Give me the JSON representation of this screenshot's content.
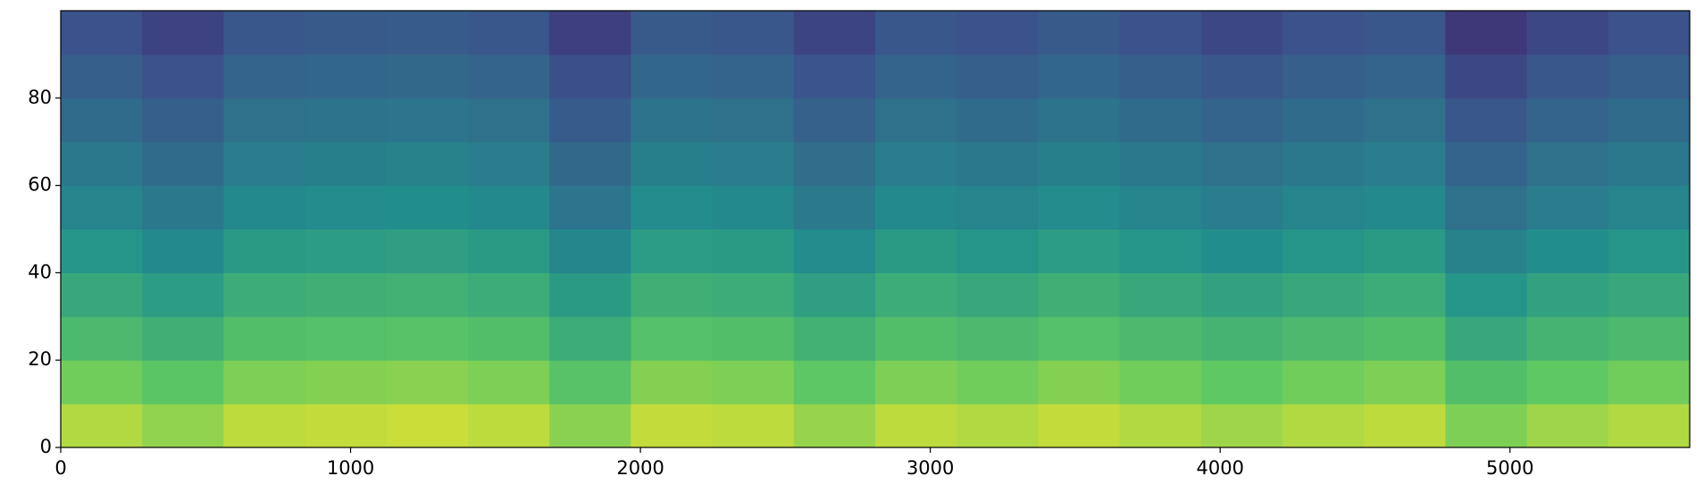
{
  "chart_data": {
    "type": "heatmap",
    "colormap": "viridis",
    "xlim": [
      0,
      5620
    ],
    "ylim": [
      0,
      100
    ],
    "xticks": [
      0,
      1000,
      2000,
      3000,
      4000,
      5000
    ],
    "yticks": [
      0,
      20,
      40,
      60,
      80
    ],
    "xbins": [
      0,
      281,
      562,
      843,
      1124,
      1405,
      1686,
      1967,
      2248,
      2529,
      2810,
      3091,
      3372,
      3653,
      3934,
      4215,
      4496,
      4777,
      5058,
      5339,
      5620
    ],
    "ybins": [
      0,
      10,
      20,
      30,
      40,
      50,
      60,
      70,
      80,
      90,
      100
    ],
    "zlim": [
      0,
      1
    ],
    "z": [
      [
        0.88,
        0.83,
        0.9,
        0.91,
        0.92,
        0.9,
        0.82,
        0.91,
        0.9,
        0.84,
        0.9,
        0.88,
        0.91,
        0.88,
        0.85,
        0.88,
        0.9,
        0.8,
        0.85,
        0.88
      ],
      [
        0.78,
        0.73,
        0.8,
        0.81,
        0.82,
        0.8,
        0.72,
        0.81,
        0.8,
        0.74,
        0.8,
        0.78,
        0.81,
        0.78,
        0.75,
        0.78,
        0.8,
        0.7,
        0.75,
        0.78
      ],
      [
        0.68,
        0.63,
        0.7,
        0.71,
        0.72,
        0.7,
        0.62,
        0.71,
        0.7,
        0.64,
        0.7,
        0.68,
        0.71,
        0.68,
        0.65,
        0.68,
        0.7,
        0.6,
        0.65,
        0.68
      ],
      [
        0.6,
        0.55,
        0.62,
        0.63,
        0.64,
        0.62,
        0.54,
        0.63,
        0.62,
        0.56,
        0.62,
        0.6,
        0.63,
        0.6,
        0.57,
        0.6,
        0.62,
        0.52,
        0.57,
        0.6
      ],
      [
        0.52,
        0.47,
        0.54,
        0.55,
        0.56,
        0.54,
        0.46,
        0.55,
        0.54,
        0.48,
        0.54,
        0.52,
        0.55,
        0.52,
        0.49,
        0.52,
        0.54,
        0.44,
        0.49,
        0.52
      ],
      [
        0.45,
        0.4,
        0.47,
        0.48,
        0.49,
        0.47,
        0.39,
        0.48,
        0.47,
        0.41,
        0.47,
        0.45,
        0.48,
        0.45,
        0.42,
        0.45,
        0.47,
        0.37,
        0.42,
        0.45
      ],
      [
        0.4,
        0.35,
        0.42,
        0.43,
        0.44,
        0.42,
        0.34,
        0.43,
        0.42,
        0.36,
        0.42,
        0.4,
        0.43,
        0.4,
        0.37,
        0.4,
        0.42,
        0.32,
        0.37,
        0.4
      ],
      [
        0.35,
        0.3,
        0.37,
        0.38,
        0.39,
        0.37,
        0.29,
        0.38,
        0.37,
        0.31,
        0.37,
        0.35,
        0.38,
        0.35,
        0.32,
        0.35,
        0.37,
        0.27,
        0.32,
        0.35
      ],
      [
        0.3,
        0.25,
        0.32,
        0.33,
        0.34,
        0.32,
        0.24,
        0.33,
        0.32,
        0.26,
        0.32,
        0.3,
        0.33,
        0.3,
        0.27,
        0.3,
        0.32,
        0.22,
        0.27,
        0.3
      ],
      [
        0.25,
        0.2,
        0.27,
        0.28,
        0.29,
        0.27,
        0.19,
        0.28,
        0.27,
        0.21,
        0.27,
        0.25,
        0.28,
        0.25,
        0.22,
        0.25,
        0.27,
        0.17,
        0.22,
        0.25
      ]
    ]
  }
}
